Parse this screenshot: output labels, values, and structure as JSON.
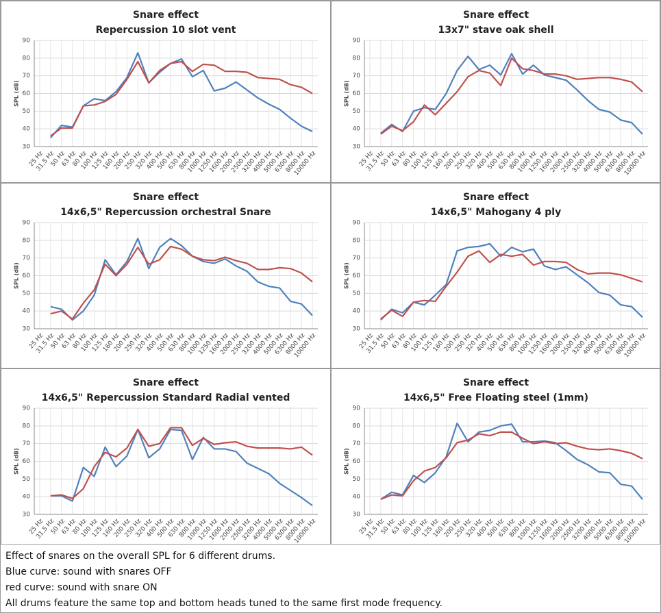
{
  "chart_data": [
    {
      "type": "line",
      "title": "Snare effect",
      "subtitle": "Repercussion 10 slot vent",
      "y_label": "SPL (dB)",
      "categories": [
        "25 Hz",
        "31,5 Hz",
        "50 Hz",
        "63 Hz",
        "80 Hz",
        "100 Hz",
        "125 Hz",
        "160 Hz",
        "200 Hz",
        "250 Hz",
        "320 Hz",
        "400 Hz",
        "500 Hz",
        "630 Hz",
        "800 Hz",
        "1000 Hz",
        "1250 Hz",
        "1600 Hz",
        "2000 Hz",
        "2500 Hz",
        "3200 Hz",
        "4000 Hz",
        "5000 Hz",
        "6300 Hz",
        "8000 Hz",
        "10000 Hz"
      ],
      "series": [
        {
          "color": "#4f81bd",
          "values": [
            null,
            35,
            42,
            41,
            53,
            57,
            56,
            61,
            69,
            83,
            66,
            72,
            77,
            79.5,
            69.5,
            73,
            61.5,
            63,
            66.5,
            62,
            57.5,
            54,
            51,
            46,
            41.5,
            38.5
          ]
        },
        {
          "color": "#c0504d",
          "values": [
            null,
            36,
            40.5,
            40.5,
            53,
            53.5,
            55.5,
            59.5,
            68,
            78,
            66,
            73,
            77,
            78,
            72.5,
            76.5,
            76,
            72.5,
            72.5,
            72,
            69,
            68.5,
            68,
            65,
            63.5,
            60
          ]
        }
      ],
      "ylim": [
        30,
        90
      ],
      "yticks": [
        30,
        40,
        50,
        60,
        70,
        80,
        90
      ],
      "grid": true
    },
    {
      "type": "line",
      "title": "Snare effect",
      "subtitle": "13x7\" stave oak shell",
      "y_label": "SPL (dB)",
      "categories": [
        "25 Hz",
        "31,5 Hz",
        "50 Hz",
        "63 Hz",
        "80 Hz",
        "100 Hz",
        "125 Hz",
        "160 Hz",
        "200 Hz",
        "250 Hz",
        "320 Hz",
        "400 Hz",
        "500 Hz",
        "630 Hz",
        "800 Hz",
        "1000 Hz",
        "1250 Hz",
        "1600 Hz",
        "2000 Hz",
        "2500 Hz",
        "3200 Hz",
        "4000 Hz",
        "5000 Hz",
        "6300 Hz",
        "8000 Hz",
        "10000 Hz"
      ],
      "series": [
        {
          "color": "#4f81bd",
          "values": [
            null,
            37.5,
            42.5,
            38.5,
            50,
            52,
            51,
            60,
            73,
            81,
            73.5,
            76,
            70.5,
            82.5,
            71,
            76,
            70.5,
            69,
            67.5,
            62,
            56,
            51,
            49.5,
            45,
            43.5,
            37
          ]
        },
        {
          "color": "#c0504d",
          "values": [
            null,
            37,
            41.5,
            39,
            44,
            53.5,
            48,
            54.5,
            61,
            69.5,
            73,
            71.5,
            64.5,
            80,
            74,
            73,
            71,
            71,
            70,
            68,
            68.5,
            69,
            69,
            68,
            66.5,
            61
          ]
        }
      ],
      "ylim": [
        30,
        90
      ],
      "yticks": [
        30,
        40,
        50,
        60,
        70,
        80,
        90
      ],
      "grid": true
    },
    {
      "type": "line",
      "title": "Snare effect",
      "subtitle": "14x6,5\" Repercussion orchestral Snare",
      "y_label": "SPL (dB)",
      "categories": [
        "25 Hz",
        "31,5 Hz",
        "50 Hz",
        "63 Hz",
        "80 Hz",
        "100 Hz",
        "125 Hz",
        "160 Hz",
        "200 Hz",
        "250 Hz",
        "320 Hz",
        "400 Hz",
        "500 Hz",
        "630 Hz",
        "800 Hz",
        "1000 Hz",
        "1250 Hz",
        "1600 Hz",
        "2000 Hz",
        "2500 Hz",
        "3200 Hz",
        "4000 Hz",
        "5000 Hz",
        "6300 Hz",
        "8000 Hz",
        "10000 Hz"
      ],
      "series": [
        {
          "color": "#4f81bd",
          "values": [
            null,
            42.5,
            41,
            35,
            40,
            49,
            69,
            60.5,
            68,
            81,
            64,
            76,
            81,
            77,
            71,
            68,
            67,
            69.5,
            65.5,
            62.5,
            56.5,
            54,
            53,
            45.5,
            44,
            37.5
          ]
        },
        {
          "color": "#c0504d",
          "values": [
            null,
            38.5,
            40,
            35.5,
            44.5,
            52,
            66.5,
            60,
            66.5,
            76,
            66.5,
            69,
            76.5,
            75,
            71,
            69,
            68.5,
            70.5,
            68.5,
            67,
            63.5,
            63.5,
            64.5,
            64,
            61.5,
            56.5
          ]
        }
      ],
      "ylim": [
        30,
        90
      ],
      "yticks": [
        30,
        40,
        50,
        60,
        70,
        80,
        90
      ],
      "grid": true
    },
    {
      "type": "line",
      "title": "Snare effect",
      "subtitle": "14x6,5\" Mahogany 4 ply",
      "y_label": "SPL (dB)",
      "categories": [
        "25 Hz",
        "31,5 Hz",
        "50 Hz",
        "63 Hz",
        "80 Hz",
        "100 Hz",
        "125 Hz",
        "160 Hz",
        "200 Hz",
        "250 Hz",
        "320 Hz",
        "400 Hz",
        "500 Hz",
        "630 Hz",
        "800 Hz",
        "1000 Hz",
        "1250 Hz",
        "1600 Hz",
        "2000 Hz",
        "2500 Hz",
        "3200 Hz",
        "4000 Hz",
        "5000 Hz",
        "6300 Hz",
        "8000 Hz",
        "10000 Hz"
      ],
      "series": [
        {
          "color": "#4f81bd",
          "values": [
            null,
            35,
            41,
            39,
            45,
            43.5,
            49,
            55,
            74,
            76,
            76.5,
            78,
            71,
            76,
            73.5,
            75,
            65.5,
            63.5,
            65,
            60.5,
            56,
            50.5,
            49,
            43.5,
            42.5,
            36.5
          ]
        },
        {
          "color": "#c0504d",
          "values": [
            null,
            35.5,
            40.5,
            37,
            45,
            46,
            45.5,
            54,
            62,
            71,
            74,
            67.5,
            72,
            71,
            72,
            66,
            68,
            68,
            67.5,
            63.5,
            61,
            61.5,
            61.5,
            60.5,
            58.5,
            56.5
          ]
        }
      ],
      "ylim": [
        30,
        90
      ],
      "yticks": [
        30,
        40,
        50,
        60,
        70,
        80,
        90
      ],
      "grid": true
    },
    {
      "type": "line",
      "title": "Snare effect",
      "subtitle": "14x6,5\" Repercussion Standard Radial vented",
      "y_label": "SPL (dB)",
      "categories": [
        "25 Hz",
        "31,5 Hz",
        "50 Hz",
        "63 Hz",
        "80 Hz",
        "100 Hz",
        "125 Hz",
        "160 Hz",
        "200 Hz",
        "250 Hz",
        "320 Hz",
        "400 Hz",
        "500 Hz",
        "630 Hz",
        "800 Hz",
        "1000 Hz",
        "1250 Hz",
        "1600 Hz",
        "2000 Hz",
        "2500 Hz",
        "3200 Hz",
        "4000 Hz",
        "5000 Hz",
        "6300 Hz",
        "8000 Hz",
        "10000 Hz"
      ],
      "series": [
        {
          "color": "#4f81bd",
          "values": [
            null,
            40.5,
            40.5,
            37.5,
            56.5,
            51.5,
            68,
            57,
            63,
            78,
            62,
            67,
            78,
            77.5,
            61,
            73.5,
            67,
            67,
            65.5,
            59,
            56,
            53,
            47.5,
            43.5,
            39.5,
            35
          ]
        },
        {
          "color": "#c0504d",
          "values": [
            null,
            40.5,
            41,
            39,
            44.5,
            57,
            65,
            62.5,
            67.5,
            78,
            68.5,
            70,
            79,
            79,
            69,
            73,
            69.5,
            70.5,
            71,
            68.5,
            67.5,
            67.5,
            67.5,
            67,
            68,
            63.5
          ]
        }
      ],
      "ylim": [
        30,
        90
      ],
      "yticks": [
        30,
        40,
        50,
        60,
        70,
        80,
        90
      ],
      "grid": true
    },
    {
      "type": "line",
      "title": "Snare effect",
      "subtitle": "14x6,5\" Free Floating steel (1mm)",
      "y_label": "SPL (dB)",
      "categories": [
        "25 Hz",
        "31,5 Hz",
        "50 Hz",
        "63 Hz",
        "80 Hz",
        "100 Hz",
        "125 Hz",
        "160 Hz",
        "200 Hz",
        "250 Hz",
        "320 Hz",
        "400 Hz",
        "500 Hz",
        "630 Hz",
        "800 Hz",
        "1000 Hz",
        "1250 Hz",
        "1600 Hz",
        "2000 Hz",
        "2500 Hz",
        "3200 Hz",
        "4000 Hz",
        "5000 Hz",
        "6300 Hz",
        "8000 Hz",
        "10000 Hz"
      ],
      "series": [
        {
          "color": "#4f81bd",
          "values": [
            null,
            38.5,
            42.5,
            41,
            52,
            48,
            53.5,
            62.5,
            81.5,
            71,
            76.5,
            77.5,
            80,
            81,
            71,
            71,
            71.5,
            70.5,
            66,
            61,
            58,
            54,
            53.5,
            47,
            46,
            38.5
          ]
        },
        {
          "color": "#c0504d",
          "values": [
            null,
            38.5,
            41,
            40.5,
            49,
            54.5,
            56.5,
            62,
            70.5,
            72,
            75.5,
            74.5,
            76.5,
            76.5,
            73,
            70,
            71,
            70,
            70.5,
            68.5,
            67,
            66.5,
            67,
            66,
            64.5,
            61.5
          ]
        }
      ],
      "ylim": [
        30,
        90
      ],
      "yticks": [
        30,
        40,
        50,
        60,
        70,
        80,
        90
      ],
      "grid": true
    }
  ],
  "caption": [
    "Effect of snares on the overall SPL for 6 different drums.",
    "Blue curve: sound with snares OFF",
    "red curve: sound with snare ON",
    "All drums feature the same top and bottom heads tuned to the same first mode frequency."
  ]
}
